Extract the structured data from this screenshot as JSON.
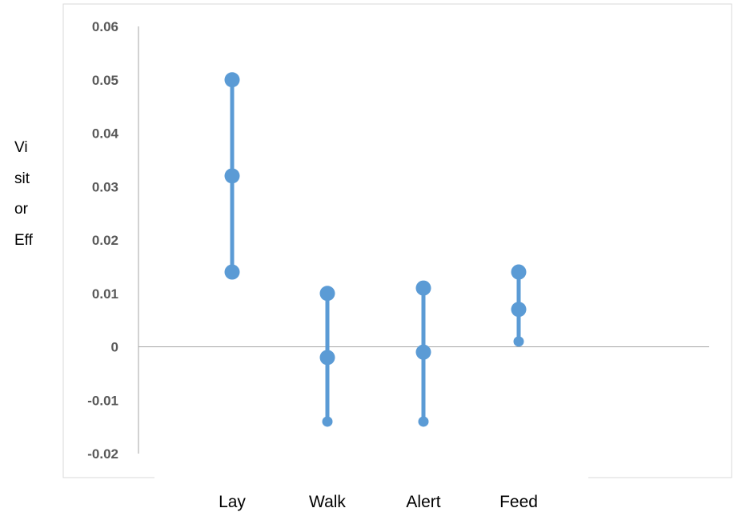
{
  "chart_data": {
    "type": "scatter",
    "ylabel_lines": [
      "Vi",
      "sit",
      "or",
      "Eff"
    ],
    "categories": [
      "Lay",
      "Walk",
      "Alert",
      "Feed"
    ],
    "series": [
      {
        "upper": 0.05,
        "mid": 0.032,
        "lower": 0.014
      },
      {
        "upper": 0.01,
        "mid": -0.002,
        "lower": -0.014
      },
      {
        "upper": 0.011,
        "mid": -0.001,
        "lower": -0.014
      },
      {
        "upper": 0.014,
        "mid": 0.007,
        "lower": 0.001
      }
    ],
    "yticks": [
      "0.06",
      "0.05",
      "0.04",
      "0.03",
      "0.02",
      "0.01",
      "0",
      "-0.01",
      "-0.02"
    ],
    "ylim": [
      -0.02,
      0.06
    ],
    "grid": false,
    "colors": {
      "series": "#5b9bd5",
      "axis": "#a6a6a6",
      "border": "#d9d9d9"
    }
  }
}
